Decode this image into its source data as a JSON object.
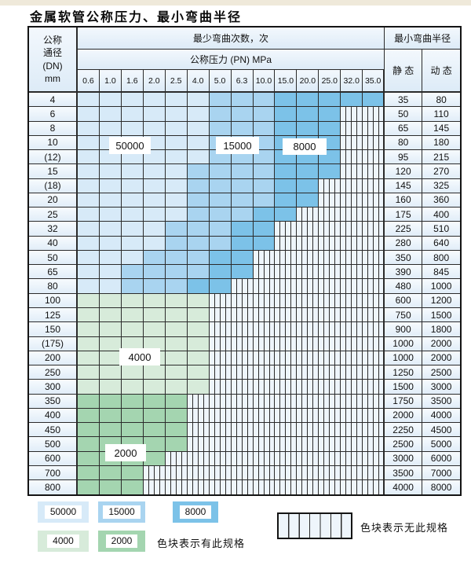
{
  "title": "金属软管公称压力、最小弯曲半径",
  "header": {
    "dn_lines": [
      "公称",
      "通径",
      "(DN)",
      "mm"
    ],
    "cycles_label": "最少弯曲次数，次",
    "pressure_label": "公称压力 (PN) MPa",
    "pressure_columns": [
      "0.6",
      "1.0",
      "1.6",
      "2.0",
      "2.5",
      "4.0",
      "5.0",
      "6.3",
      "10.0",
      "15.0",
      "20.0",
      "25.0",
      "32.0",
      "35.0"
    ],
    "radius_label": "最小弯曲半径",
    "static_label": "静 态",
    "dynamic_label": "动 态"
  },
  "shade_legend": {
    "L": "50000",
    "M": "15000",
    "D": "8000",
    "F": "4000",
    "T": "2000",
    "H": "no-spec"
  },
  "rows": [
    {
      "dn": "4",
      "seg": "L6 M3 D5",
      "static": "35",
      "dynamic": "80"
    },
    {
      "dn": "6",
      "seg": "L6 M3 D3 H2",
      "static": "50",
      "dynamic": "110"
    },
    {
      "dn": "8",
      "seg": "L6 M3 D3 H2",
      "static": "65",
      "dynamic": "145"
    },
    {
      "dn": "10",
      "seg": "L6 M3 D3 H2",
      "static": "80",
      "dynamic": "180"
    },
    {
      "dn": "(12)",
      "seg": "L6 M3 D3 H2",
      "static": "95",
      "dynamic": "215"
    },
    {
      "dn": "15",
      "seg": "L5 M4 D3 H2",
      "static": "120",
      "dynamic": "270"
    },
    {
      "dn": "(18)",
      "seg": "L5 M4 D2 H3",
      "static": "145",
      "dynamic": "325"
    },
    {
      "dn": "20",
      "seg": "L5 M4 D2 H3",
      "static": "160",
      "dynamic": "360"
    },
    {
      "dn": "25",
      "seg": "L5 M3 D2 H4",
      "static": "175",
      "dynamic": "400"
    },
    {
      "dn": "32",
      "seg": "L4 M3 D2 H5",
      "static": "225",
      "dynamic": "510"
    },
    {
      "dn": "40",
      "seg": "L4 M3 D2 H5",
      "static": "280",
      "dynamic": "640"
    },
    {
      "dn": "50",
      "seg": "L3 M3 D2 H6",
      "static": "350",
      "dynamic": "800"
    },
    {
      "dn": "65",
      "seg": "L2 M4 D2 H6",
      "static": "390",
      "dynamic": "845"
    },
    {
      "dn": "80",
      "seg": "L2 M3 D2 H7",
      "static": "480",
      "dynamic": "1000"
    },
    {
      "dn": "100",
      "seg": "F6 H8",
      "static": "600",
      "dynamic": "1200"
    },
    {
      "dn": "125",
      "seg": "F6 H8",
      "static": "750",
      "dynamic": "1500"
    },
    {
      "dn": "150",
      "seg": "F6 H8",
      "static": "900",
      "dynamic": "1800"
    },
    {
      "dn": "(175)",
      "seg": "F6 H8",
      "static": "1000",
      "dynamic": "2000"
    },
    {
      "dn": "200",
      "seg": "F6 H8",
      "static": "1000",
      "dynamic": "2000"
    },
    {
      "dn": "250",
      "seg": "F6 H8",
      "static": "1250",
      "dynamic": "2500"
    },
    {
      "dn": "300",
      "seg": "F6 H8",
      "static": "1500",
      "dynamic": "3000"
    },
    {
      "dn": "350",
      "seg": "T5 H9",
      "static": "1750",
      "dynamic": "3500"
    },
    {
      "dn": "400",
      "seg": "T5 H9",
      "static": "2000",
      "dynamic": "4000"
    },
    {
      "dn": "450",
      "seg": "T5 H9",
      "static": "2250",
      "dynamic": "4500"
    },
    {
      "dn": "500",
      "seg": "T5 H9",
      "static": "2500",
      "dynamic": "5000"
    },
    {
      "dn": "600",
      "seg": "T4 H10",
      "static": "3000",
      "dynamic": "6000"
    },
    {
      "dn": "700",
      "seg": "T3 H11",
      "static": "3500",
      "dynamic": "7000"
    },
    {
      "dn": "800",
      "seg": "T3 H11",
      "static": "4000",
      "dynamic": "8000"
    }
  ],
  "overlay_labels": {
    "v50000": "50000",
    "v15000": "15000",
    "v8000": "8000",
    "v4000": "4000",
    "v2000": "2000"
  },
  "legend": {
    "items": [
      {
        "label": "50000",
        "shade": "L"
      },
      {
        "label": "15000",
        "shade": "M"
      },
      {
        "label": "8000",
        "shade": "D"
      },
      {
        "label": "4000",
        "shade": "F"
      },
      {
        "label": "2000",
        "shade": "T"
      }
    ],
    "has_spec_text": "色块表示有此规格",
    "no_spec_text": "色块表示无此规格"
  },
  "colors": {
    "c50000": "#d7eaf8",
    "c15000": "#a9d4f0",
    "c8000": "#7cc2e8",
    "c4000": "#d7ebda",
    "c2000": "#a4d5b0",
    "hatch_bg": "#eef5fb",
    "line": "#2b2b2b"
  }
}
